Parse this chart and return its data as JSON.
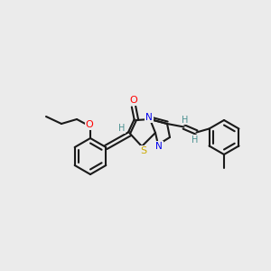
{
  "background_color": "#ebebeb",
  "bond_color": "#1a1a1a",
  "atom_colors": {
    "O": "#ff0000",
    "N": "#0000ee",
    "S": "#ccaa00",
    "H": "#4a9090",
    "C": "#1a1a1a"
  },
  "figsize": [
    3.0,
    3.0
  ],
  "dpi": 100
}
